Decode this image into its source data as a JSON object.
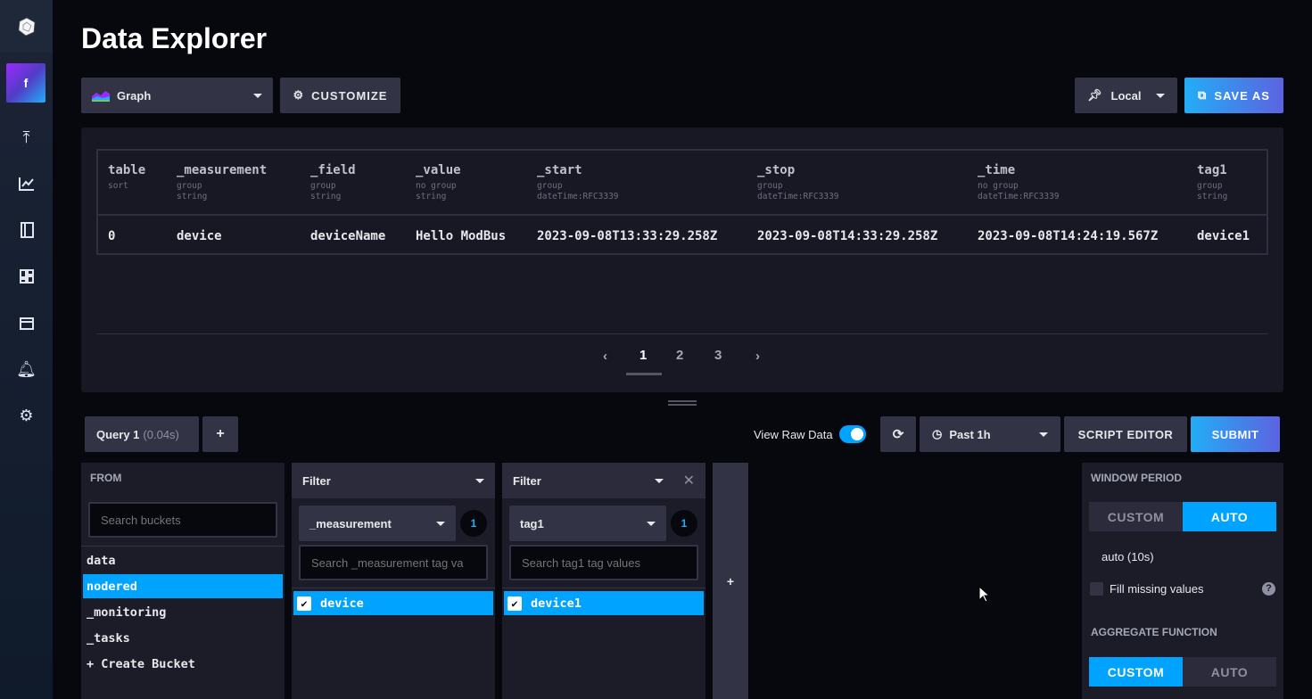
{
  "sidebar": {
    "org_initial": "f",
    "icons": [
      "upload-icon",
      "graph-icon",
      "notebook-icon",
      "dashboards-icon",
      "tasks-calendar-icon",
      "alerts-bell-icon",
      "settings-gear-icon"
    ]
  },
  "header": {
    "title": "Data Explorer"
  },
  "toolbar": {
    "vis_type": "Graph",
    "customize": "CUSTOMIZE",
    "timezone": "Local",
    "save_as": "SAVE AS"
  },
  "table": {
    "columns": [
      {
        "name": "table",
        "meta": [
          "sort"
        ]
      },
      {
        "name": "_measurement",
        "meta": [
          "group",
          "string"
        ]
      },
      {
        "name": "_field",
        "meta": [
          "group",
          "string"
        ]
      },
      {
        "name": "_value",
        "meta": [
          "no group",
          "string"
        ]
      },
      {
        "name": "_start",
        "meta": [
          "group",
          "dateTime:RFC3339"
        ]
      },
      {
        "name": "_stop",
        "meta": [
          "group",
          "dateTime:RFC3339"
        ]
      },
      {
        "name": "_time",
        "meta": [
          "no group",
          "dateTime:RFC3339"
        ]
      },
      {
        "name": "tag1",
        "meta": [
          "group",
          "string"
        ]
      }
    ],
    "rows": [
      [
        "0",
        "device",
        "deviceName",
        "Hello ModBus",
        "2023-09-08T13:33:29.258Z",
        "2023-09-08T14:33:29.258Z",
        "2023-09-08T14:24:19.567Z",
        "device1"
      ]
    ]
  },
  "pagination": {
    "pages": [
      "1",
      "2",
      "3"
    ],
    "current": "1"
  },
  "query": {
    "tab_label": "Query 1",
    "tab_time": "(0.04s)",
    "add": "+",
    "view_raw": "View Raw Data",
    "view_raw_on": true,
    "time_range": "Past 1h",
    "script_editor": "SCRIPT EDITOR",
    "submit": "SUBMIT"
  },
  "from": {
    "title": "FROM",
    "search_placeholder": "Search buckets",
    "buckets": [
      "data",
      "nodered",
      "_monitoring",
      "_tasks",
      "+ Create Bucket"
    ],
    "selected": "nodered"
  },
  "filters": [
    {
      "title": "Filter",
      "key": "_measurement",
      "count": "1",
      "search_placeholder": "Search _measurement tag va",
      "values": [
        "device"
      ]
    },
    {
      "title": "Filter",
      "key": "tag1",
      "count": "1",
      "search_placeholder": "Search tag1 tag values",
      "values": [
        "device1"
      ]
    }
  ],
  "add_filter": "+",
  "options": {
    "window_period": "WINDOW PERIOD",
    "custom": "CUSTOM",
    "auto": "AUTO",
    "window_selected": "AUTO",
    "auto_value": "auto (10s)",
    "fill_missing": "Fill missing values",
    "fill_missing_checked": false,
    "aggregate_function": "AGGREGATE FUNCTION",
    "aggregate_selected": "CUSTOM"
  },
  "colors": {
    "accent": "#00a3ff",
    "background": "#07070e",
    "panel": "#181824",
    "button": "#333346"
  }
}
